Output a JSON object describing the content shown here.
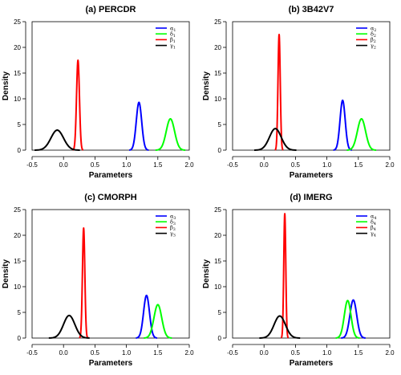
{
  "chart_data": [
    {
      "type": "line",
      "title": "(a) PERCDR",
      "xlabel": "Parameters",
      "ylabel": "Density",
      "xlim": [
        -0.5,
        2.0
      ],
      "ylim": [
        0,
        25
      ],
      "xticks": [
        -0.5,
        0.0,
        0.5,
        1.0,
        1.5,
        2.0
      ],
      "xtick_labels": [
        "-0.5",
        "0.0",
        "0.5",
        "1.0",
        "1.5",
        "2.0"
      ],
      "yticks": [
        0,
        5,
        10,
        15,
        20,
        25
      ],
      "legend_position": "top-right",
      "series": [
        {
          "name": "α₁",
          "sym": "α",
          "sub": "1",
          "color": "#0000ff",
          "mean": 1.2,
          "sd": 0.043,
          "peak": 9.3
        },
        {
          "name": "δ₁",
          "sym": "δ",
          "sub": "1",
          "color": "#00ff00",
          "mean": 1.7,
          "sd": 0.066,
          "peak": 6.1
        },
        {
          "name": "β₁",
          "sym": "β",
          "sub": "1",
          "color": "#ff0000",
          "mean": 0.23,
          "sd": 0.023,
          "peak": 17.5
        },
        {
          "name": "γ₁",
          "sym": "γ",
          "sub": "1",
          "color": "#000000",
          "mean": -0.1,
          "sd": 0.1,
          "peak": 3.9
        }
      ]
    },
    {
      "type": "line",
      "title": "(b) 3B42V7",
      "xlabel": "Parameters",
      "ylabel": "Density",
      "xlim": [
        -0.5,
        2.0
      ],
      "ylim": [
        0,
        25
      ],
      "xticks": [
        -0.5,
        0.0,
        0.5,
        1.0,
        1.5,
        2.0
      ],
      "xtick_labels": [
        "-0.5",
        "0.0",
        "0.5",
        "1.0",
        "1.5",
        "2.0"
      ],
      "yticks": [
        0,
        5,
        10,
        15,
        20,
        25
      ],
      "legend_position": "top-right",
      "series": [
        {
          "name": "α₂",
          "sym": "α",
          "sub": "2",
          "color": "#0000ff",
          "mean": 1.25,
          "sd": 0.041,
          "peak": 9.7
        },
        {
          "name": "δ₂",
          "sym": "δ",
          "sub": "2",
          "color": "#00ff00",
          "mean": 1.55,
          "sd": 0.065,
          "peak": 6.1
        },
        {
          "name": "β₂",
          "sym": "β",
          "sub": "2",
          "color": "#ff0000",
          "mean": 0.24,
          "sd": 0.018,
          "peak": 22.5
        },
        {
          "name": "γ₂",
          "sym": "γ",
          "sub": "2",
          "color": "#000000",
          "mean": 0.18,
          "sd": 0.093,
          "peak": 4.2
        }
      ]
    },
    {
      "type": "line",
      "title": "(c) CMORPH",
      "xlabel": "Parameters",
      "ylabel": "Density",
      "xlim": [
        -0.5,
        2.0
      ],
      "ylim": [
        0,
        25
      ],
      "xticks": [
        -0.5,
        0.0,
        0.5,
        1.0,
        1.5,
        2.0
      ],
      "xtick_labels": [
        "-0.5",
        "0.0",
        "0.5",
        "1.0",
        "1.5",
        "2.0"
      ],
      "yticks": [
        0,
        5,
        10,
        15,
        20,
        25
      ],
      "legend_position": "top-right",
      "series": [
        {
          "name": "α₃",
          "sym": "α",
          "sub": "3",
          "color": "#0000ff",
          "mean": 1.32,
          "sd": 0.047,
          "peak": 8.3
        },
        {
          "name": "δ₃",
          "sym": "δ",
          "sub": "3",
          "color": "#00ff00",
          "mean": 1.5,
          "sd": 0.062,
          "peak": 6.5
        },
        {
          "name": "β₃",
          "sym": "β",
          "sub": "3",
          "color": "#ff0000",
          "mean": 0.32,
          "sd": 0.019,
          "peak": 21.4
        },
        {
          "name": "γ₃",
          "sym": "γ",
          "sub": "3",
          "color": "#000000",
          "mean": 0.09,
          "sd": 0.09,
          "peak": 4.4
        }
      ]
    },
    {
      "type": "line",
      "title": "(d) IMERG",
      "xlabel": "Parameters",
      "ylabel": "Density",
      "xlim": [
        -0.5,
        2.0
      ],
      "ylim": [
        0,
        25
      ],
      "xticks": [
        -0.5,
        0.0,
        0.5,
        1.0,
        1.5,
        2.0
      ],
      "xtick_labels": [
        "-0.5",
        "0.0",
        "0.5",
        "1.0",
        "1.5",
        "2.0"
      ],
      "yticks": [
        0,
        5,
        10,
        15,
        20,
        25
      ],
      "legend_position": "top-right",
      "series": [
        {
          "name": "α₄",
          "sym": "α",
          "sub": "4",
          "color": "#0000ff",
          "mean": 1.42,
          "sd": 0.054,
          "peak": 7.4
        },
        {
          "name": "δ₄",
          "sym": "δ",
          "sub": "4",
          "color": "#00ff00",
          "mean": 1.33,
          "sd": 0.053,
          "peak": 7.3
        },
        {
          "name": "β₄",
          "sym": "β",
          "sub": "4",
          "color": "#ff0000",
          "mean": 0.33,
          "sd": 0.016,
          "peak": 24.2
        },
        {
          "name": "γ₄",
          "sym": "γ",
          "sub": "4",
          "color": "#000000",
          "mean": 0.25,
          "sd": 0.09,
          "peak": 4.3
        }
      ]
    }
  ]
}
